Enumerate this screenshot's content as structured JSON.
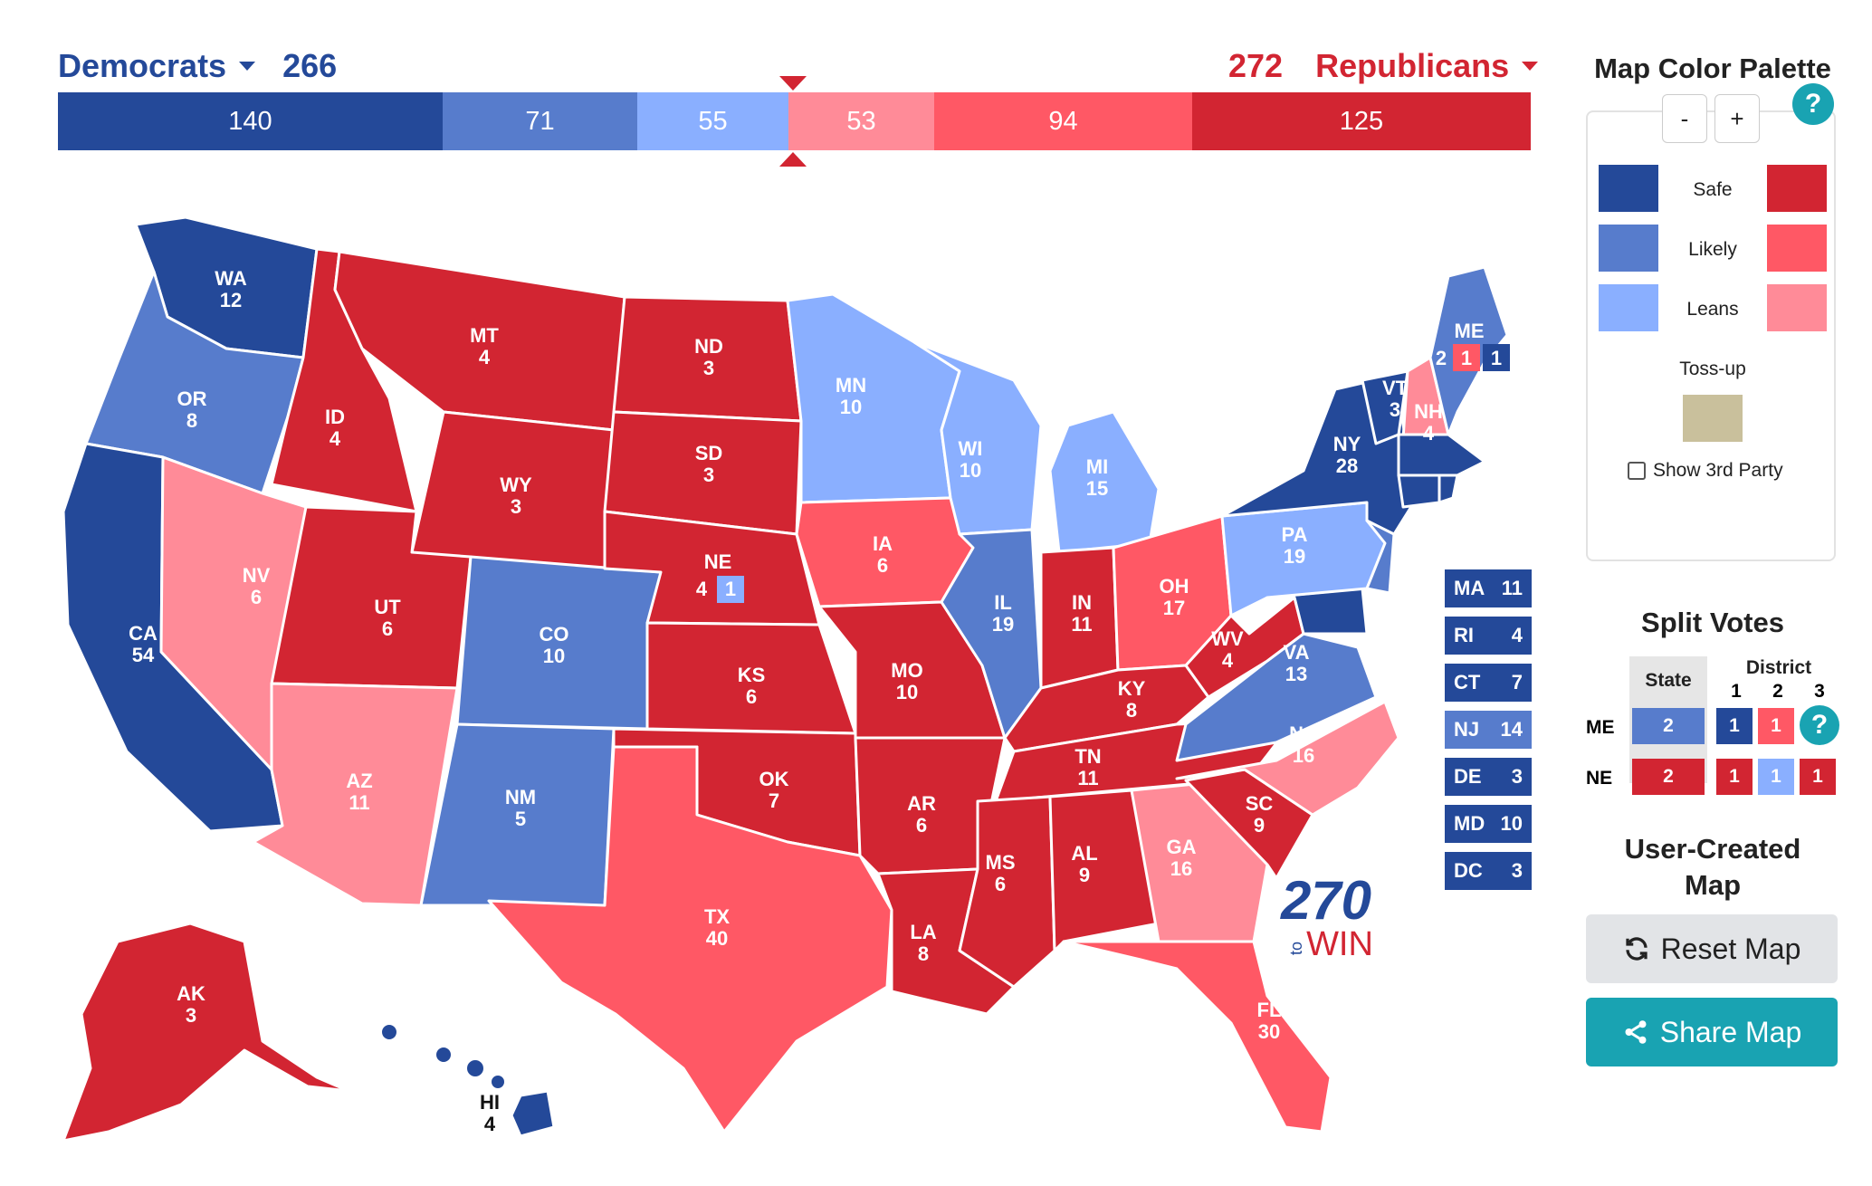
{
  "header": {
    "dem_label": "Democrats",
    "dem_total": "266",
    "rep_total": "272",
    "rep_label": "Republicans"
  },
  "bar": [
    {
      "value": "140",
      "color": "#244999"
    },
    {
      "value": "71",
      "color": "#577ccc"
    },
    {
      "value": "55",
      "color": "#8aafff"
    },
    {
      "value": "53",
      "color": "#ff8b98"
    },
    {
      "value": "94",
      "color": "#ff5865"
    },
    {
      "value": "125",
      "color": "#d22532"
    }
  ],
  "colors": {
    "safe_d": "#244999",
    "likely_d": "#577ccc",
    "lean_d": "#8aafff",
    "lean_r": "#ff8b98",
    "likely_r": "#ff5865",
    "safe_r": "#d22532",
    "tossup": "#c9c09c",
    "accent": "#19a3b2"
  },
  "states": {
    "WA": {
      "abbr": "WA",
      "ev": "12"
    },
    "OR": {
      "abbr": "OR",
      "ev": "8"
    },
    "CA": {
      "abbr": "CA",
      "ev": "54"
    },
    "NV": {
      "abbr": "NV",
      "ev": "6"
    },
    "ID": {
      "abbr": "ID",
      "ev": "4"
    },
    "MT": {
      "abbr": "MT",
      "ev": "4"
    },
    "WY": {
      "abbr": "WY",
      "ev": "3"
    },
    "UT": {
      "abbr": "UT",
      "ev": "6"
    },
    "AZ": {
      "abbr": "AZ",
      "ev": "11"
    },
    "CO": {
      "abbr": "CO",
      "ev": "10"
    },
    "NM": {
      "abbr": "NM",
      "ev": "5"
    },
    "ND": {
      "abbr": "ND",
      "ev": "3"
    },
    "SD": {
      "abbr": "SD",
      "ev": "3"
    },
    "NE": {
      "abbr": "NE",
      "ev": "4",
      "split": "1"
    },
    "KS": {
      "abbr": "KS",
      "ev": "6"
    },
    "OK": {
      "abbr": "OK",
      "ev": "7"
    },
    "TX": {
      "abbr": "TX",
      "ev": "40"
    },
    "MN": {
      "abbr": "MN",
      "ev": "10"
    },
    "IA": {
      "abbr": "IA",
      "ev": "6"
    },
    "MO": {
      "abbr": "MO",
      "ev": "10"
    },
    "AR": {
      "abbr": "AR",
      "ev": "6"
    },
    "LA": {
      "abbr": "LA",
      "ev": "8"
    },
    "WI": {
      "abbr": "WI",
      "ev": "10"
    },
    "IL": {
      "abbr": "IL",
      "ev": "19"
    },
    "MI": {
      "abbr": "MI",
      "ev": "15"
    },
    "IN": {
      "abbr": "IN",
      "ev": "11"
    },
    "OH": {
      "abbr": "OH",
      "ev": "17"
    },
    "KY": {
      "abbr": "KY",
      "ev": "8"
    },
    "TN": {
      "abbr": "TN",
      "ev": "11"
    },
    "MS": {
      "abbr": "MS",
      "ev": "6"
    },
    "AL": {
      "abbr": "AL",
      "ev": "9"
    },
    "GA": {
      "abbr": "GA",
      "ev": "16"
    },
    "FL": {
      "abbr": "FL",
      "ev": "30"
    },
    "SC": {
      "abbr": "SC",
      "ev": "9"
    },
    "NC": {
      "abbr": "NC",
      "ev": "16"
    },
    "VA": {
      "abbr": "VA",
      "ev": "13"
    },
    "WV": {
      "abbr": "WV",
      "ev": "4"
    },
    "PA": {
      "abbr": "PA",
      "ev": "19"
    },
    "NY": {
      "abbr": "NY",
      "ev": "28"
    },
    "VT": {
      "abbr": "VT",
      "ev": "3"
    },
    "NH": {
      "abbr": "NH",
      "ev": "4"
    },
    "ME": {
      "abbr": "ME",
      "ev": "2",
      "split_r": "1",
      "split_d": "1"
    },
    "AK": {
      "abbr": "AK",
      "ev": "3"
    },
    "HI": {
      "abbr": "HI",
      "ev": "4"
    }
  },
  "small_states": [
    {
      "abbr": "MA",
      "ev": "11"
    },
    {
      "abbr": "RI",
      "ev": "4"
    },
    {
      "abbr": "CT",
      "ev": "7"
    },
    {
      "abbr": "NJ",
      "ev": "14"
    },
    {
      "abbr": "DE",
      "ev": "3"
    },
    {
      "abbr": "MD",
      "ev": "10"
    },
    {
      "abbr": "DC",
      "ev": "3"
    }
  ],
  "logo": {
    "num": "270",
    "word": "WIN",
    "small": "to"
  },
  "palette": {
    "title": "Map Color Palette",
    "minus": "-",
    "plus": "+",
    "help": "?",
    "safe": "Safe",
    "likely": "Likely",
    "leans": "Leans",
    "tossup": "Toss-up",
    "third_party": "Show 3rd Party"
  },
  "split": {
    "title": "Split Votes",
    "col_state": "State",
    "col_district": "District",
    "d1": "1",
    "d2": "2",
    "d3": "3",
    "me": {
      "label": "ME",
      "state": "2",
      "d1": "1",
      "d2": "1"
    },
    "ne": {
      "label": "NE",
      "state": "2",
      "d1": "1",
      "d2": "1",
      "d3": "1"
    }
  },
  "user_map": {
    "title_line1": "User-Created",
    "title_line2": "Map",
    "reset": "Reset Map",
    "share": "Share Map"
  }
}
